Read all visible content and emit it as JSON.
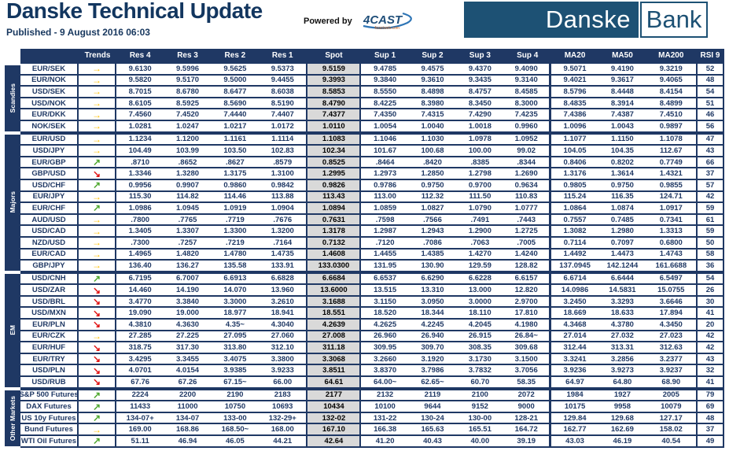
{
  "header": {
    "title": "Danske Technical Update",
    "published": "Published - 9 August 2016 06:03",
    "powered_by": "Powered by",
    "powered_logo_text": "4CAST",
    "powered_logo_sub": "4castweb.com",
    "bank_logo_part1": "Danske",
    "bank_logo_part2": "Bank"
  },
  "colors": {
    "navy": "#1F3864",
    "logo_blue": "#1D5174",
    "spot_bg": "#D9D9D9",
    "trend_up": "#4EA72E",
    "trend_right": "#FFC000",
    "trend_down": "#E11414"
  },
  "table": {
    "columns": [
      "Trends",
      "Res 4",
      "Res 3",
      "Res 2",
      "Res 1",
      "Spot",
      "Sup 1",
      "Sup 2",
      "Sup 3",
      "Sup 4",
      "MA20",
      "MA50",
      "MA200",
      "RSI 9"
    ],
    "trend_glyphs": {
      "up": "↗",
      "right": "→",
      "down": "↘"
    },
    "sections": [
      {
        "label": "Scandies",
        "rows": [
          {
            "instrument": "EUR/SEK",
            "trend": "right",
            "res": [
              "9.6130",
              "9.5996",
              "9.5625",
              "9.5373"
            ],
            "spot": "9.5159",
            "sup": [
              "9.4785",
              "9.4575",
              "9.4370",
              "9.4090"
            ],
            "ma": [
              "9.5071",
              "9.4190",
              "9.3219"
            ],
            "rsi": "52"
          },
          {
            "instrument": "EUR/NOK",
            "trend": "right",
            "res": [
              "9.5820",
              "9.5170",
              "9.5000",
              "9.4455"
            ],
            "spot": "9.3993",
            "sup": [
              "9.3840",
              "9.3610",
              "9.3435",
              "9.3140"
            ],
            "ma": [
              "9.4021",
              "9.3617",
              "9.4065"
            ],
            "rsi": "48"
          },
          {
            "instrument": "USD/SEK",
            "trend": "right",
            "res": [
              "8.7015",
              "8.6780",
              "8.6477",
              "8.6038"
            ],
            "spot": "8.5853",
            "sup": [
              "8.5550",
              "8.4898",
              "8.4757",
              "8.4585"
            ],
            "ma": [
              "8.5796",
              "8.4448",
              "8.4154"
            ],
            "rsi": "54"
          },
          {
            "instrument": "USD/NOK",
            "trend": "right",
            "res": [
              "8.6105",
              "8.5925",
              "8.5690",
              "8.5190"
            ],
            "spot": "8.4790",
            "sup": [
              "8.4225",
              "8.3980",
              "8.3450",
              "8.3000"
            ],
            "ma": [
              "8.4835",
              "8.3914",
              "8.4899"
            ],
            "rsi": "51"
          },
          {
            "instrument": "EUR/DKK",
            "trend": "right",
            "res": [
              "7.4560",
              "7.4520",
              "7.4440",
              "7.4407"
            ],
            "spot": "7.4377",
            "sup": [
              "7.4350",
              "7.4315",
              "7.4290",
              "7.4235"
            ],
            "ma": [
              "7.4386",
              "7.4387",
              "7.4510"
            ],
            "rsi": "46"
          },
          {
            "instrument": "NOK/SEK",
            "trend": "right",
            "res": [
              "1.0281",
              "1.0247",
              "1.0217",
              "1.0172"
            ],
            "spot": "1.0110",
            "sup": [
              "1.0054",
              "1.0040",
              "1.0018",
              "0.9960"
            ],
            "ma": [
              "1.0096",
              "1.0043",
              "0.9897"
            ],
            "rsi": "56"
          }
        ]
      },
      {
        "label": "Majors",
        "rows": [
          {
            "instrument": "EUR/USD",
            "trend": "right",
            "res": [
              "1.1234",
              "1.1200",
              "1.1161",
              "1.1114"
            ],
            "spot": "1.1083",
            "sup": [
              "1.1046",
              "1.1030",
              "1.0978",
              "1.0952"
            ],
            "ma": [
              "1.1077",
              "1.1150",
              "1.1078"
            ],
            "rsi": "47"
          },
          {
            "instrument": "USD/JPY",
            "trend": "right",
            "res": [
              "104.49",
              "103.99",
              "103.50",
              "102.83"
            ],
            "spot": "102.34",
            "sup": [
              "101.67",
              "100.68",
              "100.00",
              "99.02"
            ],
            "ma": [
              "104.05",
              "104.35",
              "112.67"
            ],
            "rsi": "43"
          },
          {
            "instrument": "EUR/GBP",
            "trend": "up",
            "res": [
              ".8710",
              ".8652",
              ".8627",
              ".8579"
            ],
            "spot": "0.8525",
            "sup": [
              ".8464",
              ".8420",
              ".8385",
              ".8344"
            ],
            "ma": [
              "0.8406",
              "0.8202",
              "0.7749"
            ],
            "rsi": "66"
          },
          {
            "instrument": "GBP/USD",
            "trend": "down",
            "res": [
              "1.3346",
              "1.3280",
              "1.3175",
              "1.3100"
            ],
            "spot": "1.2995",
            "sup": [
              "1.2973",
              "1.2850",
              "1.2798",
              "1.2690"
            ],
            "ma": [
              "1.3176",
              "1.3614",
              "1.4321"
            ],
            "rsi": "37"
          },
          {
            "instrument": "USD/CHF",
            "trend": "up",
            "res": [
              "0.9956",
              "0.9907",
              "0.9860",
              "0.9842"
            ],
            "spot": "0.9826",
            "sup": [
              "0.9786",
              "0.9750",
              "0.9700",
              "0.9634"
            ],
            "ma": [
              "0.9805",
              "0.9750",
              "0.9855"
            ],
            "rsi": "57"
          },
          {
            "instrument": "EUR/JPY",
            "trend": "right",
            "res": [
              "115.30",
              "114.82",
              "114.46",
              "113.88"
            ],
            "spot": "113.43",
            "sup": [
              "113.00",
              "112.32",
              "111.50",
              "110.83"
            ],
            "ma": [
              "115.24",
              "116.35",
              "124.71"
            ],
            "rsi": "42"
          },
          {
            "instrument": "EUR/CHF",
            "trend": "up",
            "res": [
              "1.0986",
              "1.0945",
              "1.0919",
              "1.0904"
            ],
            "spot": "1.0894",
            "sup": [
              "1.0859",
              "1.0827",
              "1.0790",
              "1.0777"
            ],
            "ma": [
              "1.0864",
              "1.0874",
              "1.0917"
            ],
            "rsi": "59"
          },
          {
            "instrument": "AUD/USD",
            "trend": "right",
            "res": [
              ".7800",
              ".7765",
              ".7719",
              ".7676"
            ],
            "spot": "0.7631",
            "sup": [
              ".7598",
              ".7566",
              ".7491",
              ".7443"
            ],
            "ma": [
              "0.7557",
              "0.7485",
              "0.7341"
            ],
            "rsi": "61"
          },
          {
            "instrument": "USD/CAD",
            "trend": "right",
            "res": [
              "1.3405",
              "1.3307",
              "1.3300",
              "1.3200"
            ],
            "spot": "1.3178",
            "sup": [
              "1.2987",
              "1.2943",
              "1.2900",
              "1.2725"
            ],
            "ma": [
              "1.3082",
              "1.2980",
              "1.3313"
            ],
            "rsi": "59"
          },
          {
            "instrument": "NZD/USD",
            "trend": "right",
            "res": [
              ".7300",
              ".7257",
              ".7219",
              ".7164"
            ],
            "spot": "0.7132",
            "sup": [
              ".7120",
              ".7086",
              ".7063",
              ".7005"
            ],
            "ma": [
              "0.7114",
              "0.7097",
              "0.6800"
            ],
            "rsi": "50"
          },
          {
            "instrument": "EUR/CAD",
            "trend": "right",
            "res": [
              "1.4965",
              "1.4820",
              "1.4780",
              "1.4735"
            ],
            "spot": "1.4608",
            "sup": [
              "1.4455",
              "1.4385",
              "1.4270",
              "1.4240"
            ],
            "ma": [
              "1.4492",
              "1.4473",
              "1.4743"
            ],
            "rsi": "58"
          },
          {
            "instrument": "GBP/JPY",
            "trend": "right",
            "res": [
              "136.40",
              "136.27",
              "135.58",
              "133.91"
            ],
            "spot": "133.0300",
            "sup": [
              "131.95",
              "130.90",
              "129.59",
              "128.82"
            ],
            "ma": [
              "137.0945",
              "142.1244",
              "161.6688"
            ],
            "rsi": "36"
          }
        ]
      },
      {
        "label": "EM",
        "rows": [
          {
            "instrument": "USD/CNH",
            "trend": "up",
            "res": [
              "6.7195",
              "6.7007",
              "6.6913",
              "6.6828"
            ],
            "spot": "6.6684",
            "sup": [
              "6.6537",
              "6.6290",
              "6.6228",
              "6.6157"
            ],
            "ma": [
              "6.6714",
              "6.6444",
              "6.5497"
            ],
            "rsi": "54"
          },
          {
            "instrument": "USD/ZAR",
            "trend": "down",
            "res": [
              "14.460",
              "14.190",
              "14.070",
              "13.960"
            ],
            "spot": "13.6000",
            "sup": [
              "13.515",
              "13.310",
              "13.000",
              "12.820"
            ],
            "ma": [
              "14.0986",
              "14.5831",
              "15.0755"
            ],
            "rsi": "26"
          },
          {
            "instrument": "USD/BRL",
            "trend": "down",
            "res": [
              "3.4770",
              "3.3840",
              "3.3000",
              "3.2610"
            ],
            "spot": "3.1688",
            "sup": [
              "3.1150",
              "3.0950",
              "3.0000",
              "2.9700"
            ],
            "ma": [
              "3.2450",
              "3.3293",
              "3.6646"
            ],
            "rsi": "30"
          },
          {
            "instrument": "USD/MXN",
            "trend": "down",
            "res": [
              "19.090",
              "19.000",
              "18.977",
              "18.941"
            ],
            "spot": "18.551",
            "sup": [
              "18.520",
              "18.344",
              "18.110",
              "17.810"
            ],
            "ma": [
              "18.669",
              "18.633",
              "17.894"
            ],
            "rsi": "41"
          },
          {
            "instrument": "EUR/PLN",
            "trend": "down",
            "res": [
              "4.3810",
              "4.3630",
              "4.35~",
              "4.3040"
            ],
            "spot": "4.2639",
            "sup": [
              "4.2625",
              "4.2245",
              "4.2045",
              "4.1980"
            ],
            "ma": [
              "4.3468",
              "4.3780",
              "4.3450"
            ],
            "rsi": "20"
          },
          {
            "instrument": "EUR/CZK",
            "trend": "right",
            "res": [
              "27.285",
              "27.225",
              "27.095",
              "27.060"
            ],
            "spot": "27.008",
            "sup": [
              "26.960",
              "26.940",
              "26.915",
              "26.84~"
            ],
            "ma": [
              "27.014",
              "27.032",
              "27.023"
            ],
            "rsi": "42"
          },
          {
            "instrument": "EUR/HUF",
            "trend": "down",
            "res": [
              "318.75",
              "317.30",
              "313.80",
              "312.10"
            ],
            "spot": "311.18",
            "sup": [
              "309.95",
              "309.70",
              "308.35",
              "309.68"
            ],
            "ma": [
              "312.44",
              "313.31",
              "312.63"
            ],
            "rsi": "42"
          },
          {
            "instrument": "EUR/TRY",
            "trend": "down",
            "res": [
              "3.4295",
              "3.3455",
              "3.4075",
              "3.3800"
            ],
            "spot": "3.3068",
            "sup": [
              "3.2660",
              "3.1920",
              "3.1730",
              "3.1500"
            ],
            "ma": [
              "3.3241",
              "3.2856",
              "3.2377"
            ],
            "rsi": "43"
          },
          {
            "instrument": "USD/PLN",
            "trend": "down",
            "res": [
              "4.0701",
              "4.0154",
              "3.9385",
              "3.9233"
            ],
            "spot": "3.8511",
            "sup": [
              "3.8370",
              "3.7986",
              "3.7832",
              "3.7056"
            ],
            "ma": [
              "3.9236",
              "3.9273",
              "3.9237"
            ],
            "rsi": "32"
          },
          {
            "instrument": "USD/RUB",
            "trend": "down",
            "res": [
              "67.76",
              "67.26",
              "67.15~",
              "66.00"
            ],
            "spot": "64.61",
            "sup": [
              "64.00~",
              "62.65~",
              "60.70",
              "58.35"
            ],
            "ma": [
              "64.97",
              "64.80",
              "68.90"
            ],
            "rsi": "41"
          }
        ]
      },
      {
        "label": "Other Markets",
        "rows": [
          {
            "instrument": "S&P 500 Futures",
            "trend": "up",
            "res": [
              "2224",
              "2200",
              "2190",
              "2183"
            ],
            "spot": "2177",
            "sup": [
              "2132",
              "2119",
              "2100",
              "2072"
            ],
            "ma": [
              "1984",
              "1927",
              "2005"
            ],
            "rsi": "79"
          },
          {
            "instrument": "DAX Futures",
            "trend": "up",
            "res": [
              "11433",
              "11000",
              "10750",
              "10693"
            ],
            "spot": "10434",
            "sup": [
              "10100",
              "9644",
              "9152",
              "9000"
            ],
            "ma": [
              "10175",
              "9958",
              "10079"
            ],
            "rsi": "69"
          },
          {
            "instrument": "US 10y Futures",
            "trend": "up",
            "res": [
              "134-07+",
              "134-07",
              "133-00",
              "132-29+"
            ],
            "spot": "132-02",
            "sup": [
              "131-22",
              "130-24",
              "130-00",
              "128-21"
            ],
            "ma": [
              "129.84",
              "129.68",
              "127.17"
            ],
            "rsi": "48"
          },
          {
            "instrument": "Bund Futures",
            "trend": "right",
            "res": [
              "169.00",
              "168.86",
              "168.50~",
              "168.00"
            ],
            "spot": "167.10",
            "sup": [
              "166.38",
              "165.63",
              "165.51",
              "164.72"
            ],
            "ma": [
              "162.77",
              "162.69",
              "158.02"
            ],
            "rsi": "37"
          },
          {
            "instrument": "WTI Oil Futures",
            "trend": "up",
            "res": [
              "51.11",
              "46.94",
              "46.05",
              "44.21"
            ],
            "spot": "42.64",
            "sup": [
              "41.20",
              "40.43",
              "40.00",
              "39.19"
            ],
            "ma": [
              "43.03",
              "46.19",
              "40.54"
            ],
            "rsi": "49"
          }
        ]
      }
    ]
  }
}
